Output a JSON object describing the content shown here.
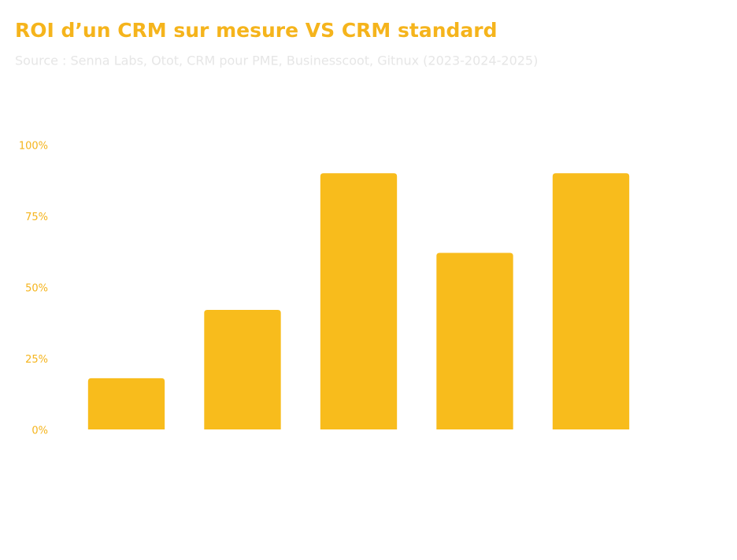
{
  "chart_data": {
    "type": "bar",
    "title": "ROI d’un CRM sur mesure VS CRM standard",
    "subtitle": "Source : Senna Labs, Otot, CRM pour PME, Businesscoot, Gitnux (2023-2024-2025)",
    "categories": [
      null,
      null,
      null,
      null,
      null
    ],
    "values": [
      18,
      42,
      90,
      62,
      90
    ],
    "color": "#f8bc1c",
    "ylim": [
      0,
      100
    ],
    "yticks": [
      {
        "value": 0,
        "label": "0%"
      },
      {
        "value": 25,
        "label": "25%"
      },
      {
        "value": 50,
        "label": "50%"
      },
      {
        "value": 75,
        "label": "75%"
      },
      {
        "value": 100,
        "label": "100%"
      }
    ],
    "grid": false
  }
}
